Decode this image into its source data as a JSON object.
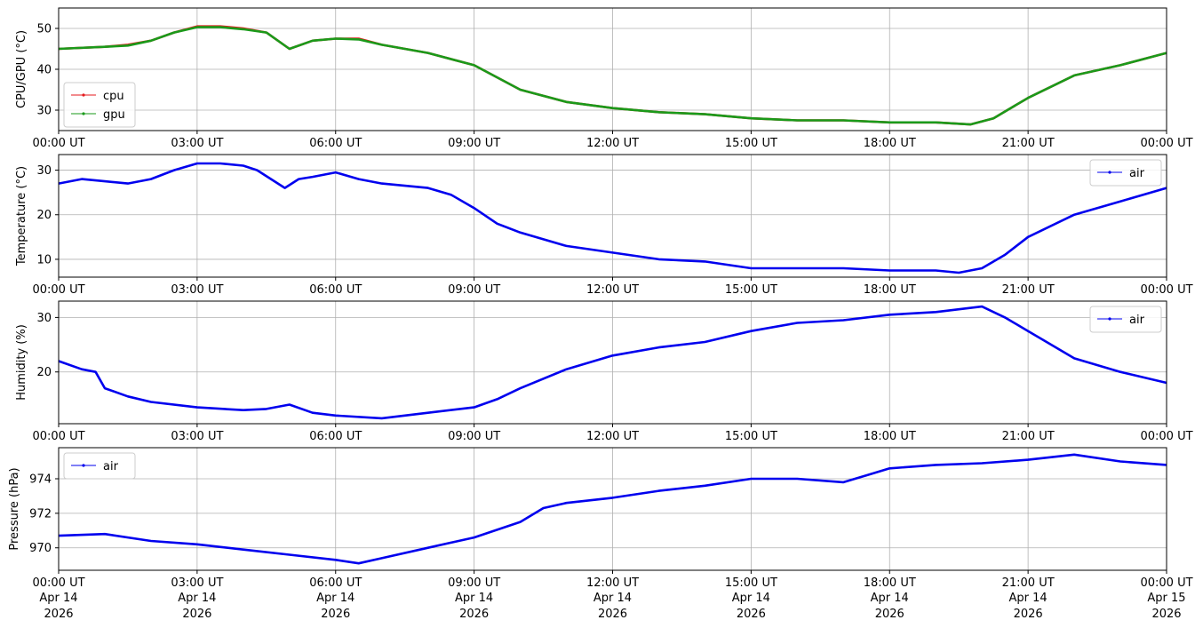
{
  "x_axis": {
    "range": [
      "2026-04-14T00:00Z",
      "2026-04-15T00:00Z"
    ],
    "tick_labels": [
      "00:00 UT",
      "03:00 UT",
      "06:00 UT",
      "09:00 UT",
      "12:00 UT",
      "15:00 UT",
      "18:00 UT",
      "21:00 UT",
      "00:00 UT"
    ],
    "tick_date_line1": [
      "Apr 14",
      "Apr 14",
      "Apr 14",
      "Apr 14",
      "Apr 14",
      "Apr 14",
      "Apr 14",
      "Apr 14",
      "Apr 15"
    ],
    "tick_date_line2": [
      "2026",
      "2026",
      "2026",
      "2026",
      "2026",
      "2026",
      "2026",
      "2026",
      "2026"
    ]
  },
  "chart_data": [
    {
      "type": "line",
      "ylabel": "CPU/GPU (°C)",
      "ylim": [
        25,
        55
      ],
      "yticks": [
        30,
        40,
        50
      ],
      "grid": true,
      "legend_position": "center-left",
      "x_hours": [
        0,
        1,
        1.5,
        2,
        2.5,
        3,
        3.5,
        4,
        4.5,
        5,
        5.5,
        6,
        6.5,
        7,
        8,
        9,
        10,
        11,
        12,
        13,
        14,
        15,
        16,
        17,
        18,
        19,
        19.75,
        20.25,
        21,
        22,
        23,
        24
      ],
      "series": [
        {
          "name": "cpu",
          "color": "#e41a1c",
          "values": [
            45,
            45.5,
            46,
            47,
            49,
            50.5,
            50.5,
            50,
            49,
            45,
            47,
            47.5,
            47.5,
            46,
            44,
            41,
            35,
            32,
            30.5,
            29.5,
            29,
            28,
            27.5,
            27.5,
            27,
            27,
            26.5,
            28,
            33,
            38.5,
            41,
            44
          ]
        },
        {
          "name": "gpu",
          "color": "#1a9a1a",
          "values": [
            45,
            45.5,
            45.8,
            47,
            49,
            50.3,
            50.3,
            49.8,
            49,
            45,
            47,
            47.5,
            47.3,
            46,
            44,
            41,
            35,
            32,
            30.5,
            29.5,
            29,
            28,
            27.5,
            27.5,
            27,
            27,
            26.5,
            28,
            33,
            38.5,
            41,
            44
          ]
        }
      ]
    },
    {
      "type": "line",
      "ylabel": "Temperature (°C)",
      "ylim": [
        6,
        33.5
      ],
      "yticks": [
        10,
        20,
        30
      ],
      "grid": true,
      "legend_position": "upper-right",
      "x_hours": [
        0,
        0.5,
        1,
        1.5,
        2,
        2.5,
        3,
        3.5,
        4,
        4.3,
        4.6,
        4.9,
        5.2,
        5.5,
        6,
        6.5,
        7,
        8,
        8.5,
        9,
        9.5,
        10,
        11,
        12,
        13,
        14,
        15,
        16,
        17,
        18,
        19,
        19.5,
        20,
        20.5,
        21,
        22,
        23,
        24
      ],
      "series": [
        {
          "name": "air",
          "color": "#0000ee",
          "values": [
            27,
            28,
            27.5,
            27,
            28,
            30,
            31.5,
            31.5,
            31,
            30,
            28,
            26,
            28,
            28.5,
            29.5,
            28,
            27,
            26,
            24.5,
            21.5,
            18,
            16,
            13,
            11.5,
            10,
            9.5,
            8,
            8,
            8,
            7.5,
            7.5,
            7,
            8,
            11,
            15,
            20,
            23,
            26
          ]
        }
      ]
    },
    {
      "type": "line",
      "ylabel": "Humidity (%)",
      "ylim": [
        10.5,
        33
      ],
      "yticks": [
        20,
        30
      ],
      "grid": true,
      "legend_position": "upper-right",
      "x_hours": [
        0,
        0.5,
        0.8,
        1,
        1.5,
        2,
        3,
        4,
        4.5,
        5,
        5.5,
        6,
        7,
        8,
        9,
        9.5,
        10,
        11,
        12,
        13,
        14,
        15,
        16,
        17,
        18,
        19,
        20,
        20.5,
        21,
        22,
        23,
        24
      ],
      "series": [
        {
          "name": "air",
          "color": "#0000ee",
          "values": [
            22,
            20.5,
            20,
            17,
            15.5,
            14.5,
            13.5,
            13,
            13.2,
            14,
            12.5,
            12,
            11.5,
            12.5,
            13.5,
            15,
            17,
            20.5,
            23,
            24.5,
            25.5,
            27.5,
            29,
            29.5,
            30.5,
            31,
            32,
            30,
            27.5,
            22.5,
            20,
            18
          ]
        }
      ]
    },
    {
      "type": "line",
      "ylabel": "Pressure (hPa)",
      "ylim": [
        968.7,
        975.8
      ],
      "yticks": [
        970,
        972,
        974
      ],
      "grid": true,
      "legend_position": "upper-left",
      "x_hours": [
        0,
        1,
        2,
        3,
        4,
        5,
        6,
        6.5,
        7,
        8,
        9,
        10,
        10.5,
        11,
        12,
        13,
        14,
        15,
        16,
        17,
        17.5,
        18,
        19,
        20,
        21,
        22,
        23,
        24
      ],
      "series": [
        {
          "name": "air",
          "color": "#0000ee",
          "values": [
            970.7,
            970.8,
            970.4,
            970.2,
            969.9,
            969.6,
            969.3,
            969.1,
            969.4,
            970.0,
            970.6,
            971.5,
            972.3,
            972.6,
            972.9,
            973.3,
            973.6,
            974.0,
            974.0,
            973.8,
            974.2,
            974.6,
            974.8,
            974.9,
            975.1,
            975.4,
            975.0,
            974.8
          ]
        }
      ]
    }
  ]
}
